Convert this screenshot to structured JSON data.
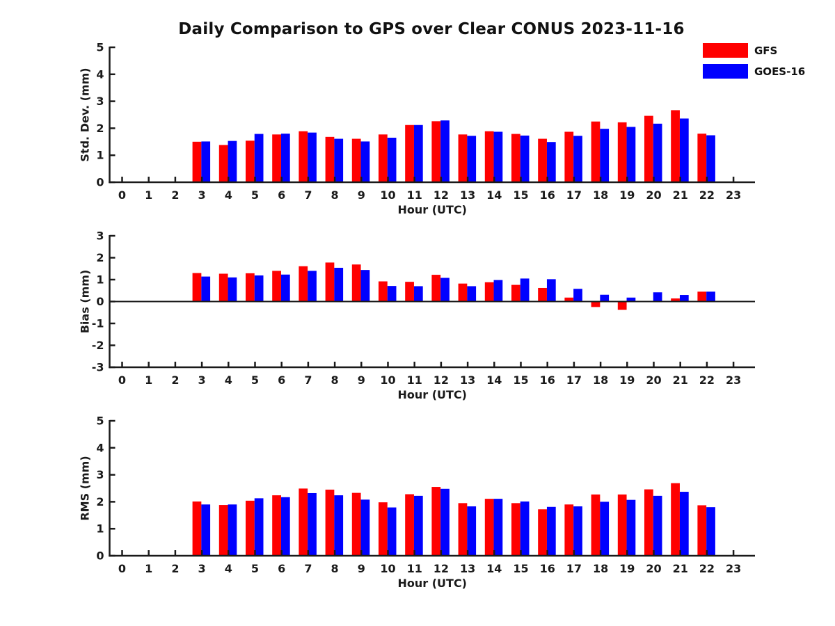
{
  "figure": {
    "title": "Daily Comparison to GPS over Clear CONUS 2023-11-16",
    "background_color": "#ffffff",
    "text_color": "#1a1a1a"
  },
  "legend": {
    "position": "top-right",
    "items": [
      {
        "label": "GFS",
        "color": "#ff0000"
      },
      {
        "label": "GOES-16",
        "color": "#0000ff"
      }
    ]
  },
  "chart_data": [
    {
      "type": "bar",
      "panel": "std-dev",
      "ylabel": "Std. Dev. (mm)",
      "xlabel": "Hour (UTC)",
      "ylim": [
        0,
        5
      ],
      "yticks": [
        0,
        1,
        2,
        3,
        4,
        5
      ],
      "grid": false,
      "zero_line": false,
      "categories": [
        0,
        1,
        2,
        3,
        4,
        5,
        6,
        7,
        8,
        9,
        10,
        11,
        12,
        13,
        14,
        15,
        16,
        17,
        18,
        19,
        20,
        21,
        22,
        23
      ],
      "series": [
        {
          "name": "GFS",
          "color": "#ff0000",
          "values": [
            null,
            null,
            null,
            1.5,
            1.38,
            1.54,
            1.77,
            1.89,
            1.68,
            1.61,
            1.77,
            2.12,
            2.26,
            1.77,
            1.89,
            1.79,
            1.61,
            1.87,
            2.25,
            2.22,
            2.46,
            2.67,
            1.8,
            null
          ]
        },
        {
          "name": "GOES-16",
          "color": "#0000ff",
          "values": [
            null,
            null,
            null,
            1.51,
            1.53,
            1.79,
            1.8,
            1.84,
            1.61,
            1.51,
            1.65,
            2.12,
            2.29,
            1.72,
            1.87,
            1.73,
            1.49,
            1.72,
            1.98,
            2.05,
            2.17,
            2.36,
            1.74,
            null
          ]
        }
      ]
    },
    {
      "type": "bar",
      "panel": "bias",
      "ylabel": "Bias (mm)",
      "xlabel": "Hour (UTC)",
      "ylim": [
        -3,
        3
      ],
      "yticks": [
        -3,
        -2,
        -1,
        0,
        1,
        2,
        3
      ],
      "grid": false,
      "zero_line": true,
      "categories": [
        0,
        1,
        2,
        3,
        4,
        5,
        6,
        7,
        8,
        9,
        10,
        11,
        12,
        13,
        14,
        15,
        16,
        17,
        18,
        19,
        20,
        21,
        22,
        23
      ],
      "series": [
        {
          "name": "GFS",
          "color": "#ff0000",
          "values": [
            null,
            null,
            null,
            1.3,
            1.27,
            1.29,
            1.4,
            1.61,
            1.78,
            1.69,
            0.92,
            0.9,
            1.22,
            0.82,
            0.88,
            0.76,
            0.62,
            0.18,
            -0.25,
            -0.38,
            0.0,
            0.14,
            0.45,
            null
          ]
        },
        {
          "name": "GOES-16",
          "color": "#0000ff",
          "values": [
            null,
            null,
            null,
            1.14,
            1.1,
            1.19,
            1.23,
            1.4,
            1.54,
            1.44,
            0.71,
            0.7,
            1.08,
            0.7,
            0.98,
            1.05,
            1.02,
            0.58,
            0.31,
            0.18,
            0.42,
            0.3,
            0.45,
            null
          ]
        }
      ]
    },
    {
      "type": "bar",
      "panel": "rms",
      "ylabel": "RMS (mm)",
      "xlabel": "Hour (UTC)",
      "ylim": [
        0,
        5
      ],
      "yticks": [
        0,
        1,
        2,
        3,
        4,
        5
      ],
      "grid": false,
      "zero_line": false,
      "categories": [
        0,
        1,
        2,
        3,
        4,
        5,
        6,
        7,
        8,
        9,
        10,
        11,
        12,
        13,
        14,
        15,
        16,
        17,
        18,
        19,
        20,
        21,
        22,
        23
      ],
      "series": [
        {
          "name": "GFS",
          "color": "#ff0000",
          "values": [
            null,
            null,
            null,
            2.01,
            1.88,
            2.04,
            2.24,
            2.49,
            2.45,
            2.33,
            1.98,
            2.28,
            2.55,
            1.95,
            2.11,
            1.95,
            1.72,
            1.9,
            2.27,
            2.27,
            2.46,
            2.69,
            1.87,
            null
          ]
        },
        {
          "name": "GOES-16",
          "color": "#0000ff",
          "values": [
            null,
            null,
            null,
            1.9,
            1.9,
            2.13,
            2.17,
            2.32,
            2.24,
            2.08,
            1.79,
            2.22,
            2.48,
            1.83,
            2.11,
            2.01,
            1.81,
            1.83,
            2.0,
            2.07,
            2.22,
            2.37,
            1.8,
            null
          ]
        }
      ]
    }
  ]
}
